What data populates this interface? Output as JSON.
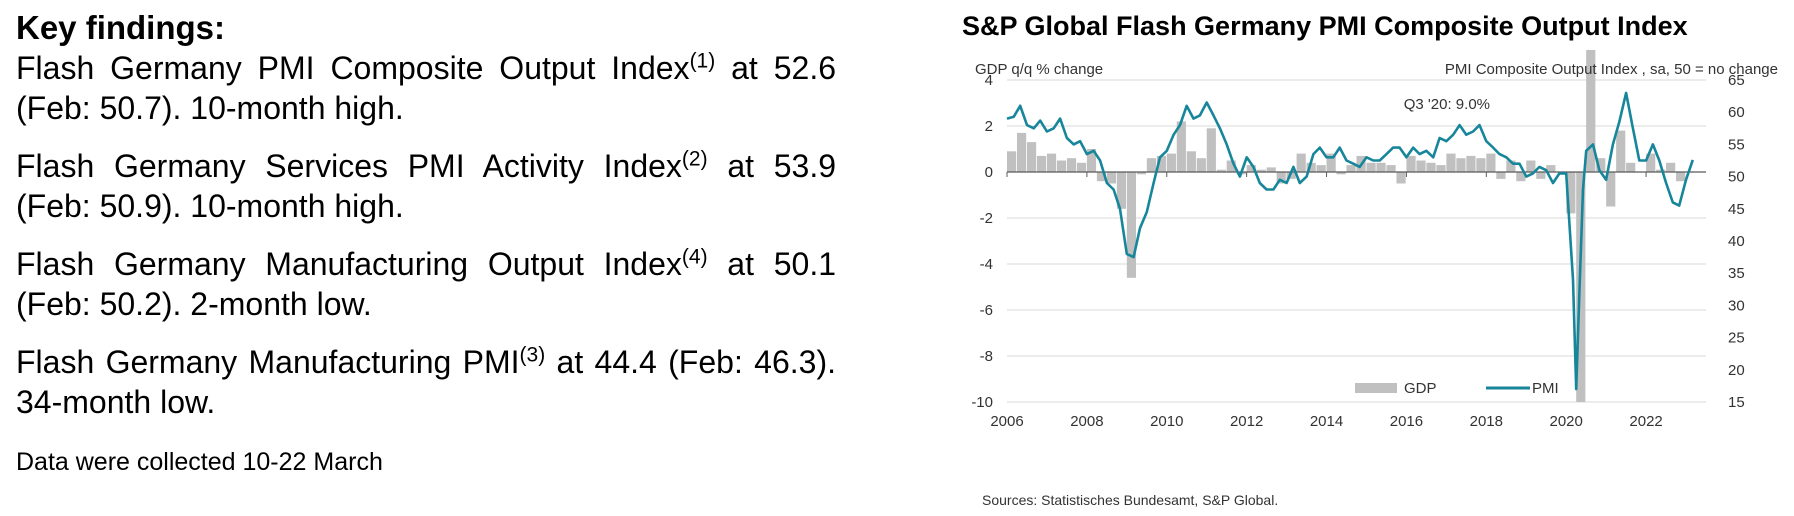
{
  "key_findings": {
    "heading": "Key findings:",
    "items": [
      {
        "pre": "Flash Germany PMI Composite Output Index",
        "sup": "(1)",
        "post": " at 52.6 (Feb: 50.7). 10-month high."
      },
      {
        "pre": "Flash Germany Services PMI Activity Index",
        "sup": "(2)",
        "post": " at 53.9 (Feb: 50.9). 10-month high."
      },
      {
        "pre": "Flash Germany Manufacturing Output Index",
        "sup": "(4)",
        "post": " at 50.1 (Feb: 50.2). 2-month low."
      },
      {
        "pre": "Flash Germany Manufacturing PMI",
        "sup": "(3)",
        "post": " at 44.4 (Feb: 46.3). 34-month low."
      }
    ],
    "note": "Data were collected 10-22 March"
  },
  "chart_data": {
    "type": "bar+line",
    "title": "S&P Global Flash Germany PMI Composite Output Index",
    "ylabel_left": "GDP q/q % change",
    "ylabel_right": "PMI Composite  Output  Index  , sa, 50 = no change",
    "ylim_left": [
      -10,
      4
    ],
    "yticks_left": [
      "4",
      "2",
      "0",
      "-2",
      "-4",
      "-6",
      "-8",
      "-10"
    ],
    "ylim_right": [
      15,
      65
    ],
    "yticks_right": [
      "65",
      "60",
      "55",
      "50",
      "45",
      "40",
      "35",
      "30",
      "25",
      "20",
      "15"
    ],
    "xlim": [
      2006,
      2023.5
    ],
    "xticks": [
      "2006",
      "2008",
      "2010",
      "2012",
      "2014",
      "2016",
      "2018",
      "2020",
      "2022"
    ],
    "annotation": "Q3 '20: 9.0%",
    "source": "Sources: Statistisches Bundesamt, S&P Global.",
    "colors": {
      "gdp": "#c0c0c0",
      "pmi": "#17869b",
      "grid": "#d9d9d9",
      "axis": "#595959"
    },
    "series": [
      {
        "name": "GDP",
        "x": [
          2006.0,
          2006.25,
          2006.5,
          2006.75,
          2007.0,
          2007.25,
          2007.5,
          2007.75,
          2008.0,
          2008.25,
          2008.5,
          2008.75,
          2009.0,
          2009.25,
          2009.5,
          2009.75,
          2010.0,
          2010.25,
          2010.5,
          2010.75,
          2011.0,
          2011.25,
          2011.5,
          2011.75,
          2012.0,
          2012.25,
          2012.5,
          2012.75,
          2013.0,
          2013.25,
          2013.5,
          2013.75,
          2014.0,
          2014.25,
          2014.5,
          2014.75,
          2015.0,
          2015.25,
          2015.5,
          2015.75,
          2016.0,
          2016.25,
          2016.5,
          2016.75,
          2017.0,
          2017.25,
          2017.5,
          2017.75,
          2018.0,
          2018.25,
          2018.5,
          2018.75,
          2019.0,
          2019.25,
          2019.5,
          2019.75,
          2020.0,
          2020.25,
          2020.5,
          2020.75,
          2021.0,
          2021.25,
          2021.5,
          2021.75,
          2022.0,
          2022.25,
          2022.5,
          2022.75
        ],
        "values": [
          0.9,
          1.7,
          1.3,
          0.7,
          0.8,
          0.5,
          0.6,
          0.4,
          1.0,
          -0.4,
          -0.5,
          -1.6,
          -4.6,
          -0.1,
          0.6,
          0.7,
          0.8,
          2.2,
          0.9,
          0.6,
          1.9,
          0.1,
          0.5,
          -0.1,
          0.3,
          0.1,
          0.2,
          -0.5,
          -0.3,
          0.8,
          0.4,
          0.3,
          0.8,
          -0.1,
          0.3,
          0.7,
          0.4,
          0.4,
          0.3,
          -0.5,
          0.7,
          0.5,
          0.4,
          0.3,
          0.8,
          0.6,
          0.7,
          0.6,
          0.8,
          -0.3,
          0.5,
          -0.4,
          0.5,
          -0.3,
          0.3,
          0.0,
          -1.8,
          -10.0,
          9.0,
          0.6,
          -1.5,
          1.8,
          0.4,
          0.0,
          0.8,
          0.1,
          0.4,
          -0.4
        ]
      },
      {
        "name": "PMI",
        "x": [
          2006.0,
          2006.17,
          2006.33,
          2006.5,
          2006.67,
          2006.83,
          2007.0,
          2007.17,
          2007.33,
          2007.5,
          2007.67,
          2007.83,
          2008.0,
          2008.17,
          2008.33,
          2008.5,
          2008.67,
          2008.83,
          2009.0,
          2009.17,
          2009.33,
          2009.5,
          2009.67,
          2009.83,
          2010.0,
          2010.17,
          2010.33,
          2010.5,
          2010.67,
          2010.83,
          2011.0,
          2011.17,
          2011.33,
          2011.5,
          2011.67,
          2011.83,
          2012.0,
          2012.17,
          2012.33,
          2012.5,
          2012.67,
          2012.83,
          2013.0,
          2013.17,
          2013.33,
          2013.5,
          2013.67,
          2013.83,
          2014.0,
          2014.17,
          2014.33,
          2014.5,
          2014.67,
          2014.83,
          2015.0,
          2015.17,
          2015.33,
          2015.5,
          2015.67,
          2015.83,
          2016.0,
          2016.17,
          2016.33,
          2016.5,
          2016.67,
          2016.83,
          2017.0,
          2017.17,
          2017.33,
          2017.5,
          2017.67,
          2017.83,
          2018.0,
          2018.17,
          2018.33,
          2018.5,
          2018.67,
          2018.83,
          2019.0,
          2019.17,
          2019.33,
          2019.5,
          2019.67,
          2019.83,
          2020.0,
          2020.17,
          2020.25,
          2020.33,
          2020.42,
          2020.5,
          2020.67,
          2020.83,
          2021.0,
          2021.17,
          2021.33,
          2021.5,
          2021.67,
          2021.83,
          2022.0,
          2022.17,
          2022.33,
          2022.5,
          2022.67,
          2022.83,
          2023.0,
          2023.17
        ],
        "values": [
          59.0,
          59.3,
          61.0,
          58.0,
          57.5,
          58.7,
          57.0,
          57.5,
          59.0,
          56.0,
          55.0,
          55.5,
          53.5,
          54.0,
          52.5,
          49.0,
          48.0,
          45.0,
          38.0,
          37.5,
          42.0,
          44.5,
          49.0,
          53.0,
          54.0,
          56.5,
          58.0,
          61.0,
          59.0,
          59.5,
          61.5,
          59.5,
          57.5,
          55.0,
          52.0,
          50.0,
          53.0,
          51.5,
          49.0,
          48.0,
          48.0,
          49.5,
          49.0,
          51.5,
          49.0,
          50.0,
          53.5,
          54.5,
          53.0,
          53.0,
          54.5,
          52.5,
          52.0,
          51.5,
          53.0,
          52.5,
          52.5,
          53.5,
          54.5,
          54.5,
          53.0,
          54.5,
          53.5,
          54.0,
          53.0,
          56.0,
          55.5,
          56.5,
          58.0,
          56.5,
          57.0,
          58.0,
          55.5,
          54.5,
          53.5,
          53.0,
          52.0,
          52.0,
          50.0,
          50.5,
          51.5,
          51.0,
          49.0,
          50.5,
          50.5,
          34.0,
          17.0,
          32.0,
          48.0,
          54.0,
          55.0,
          51.0,
          49.5,
          55.0,
          58.5,
          63.0,
          57.5,
          52.5,
          52.5,
          55.0,
          52.5,
          49.0,
          46.0,
          45.5,
          49.5,
          52.6
        ]
      }
    ]
  }
}
